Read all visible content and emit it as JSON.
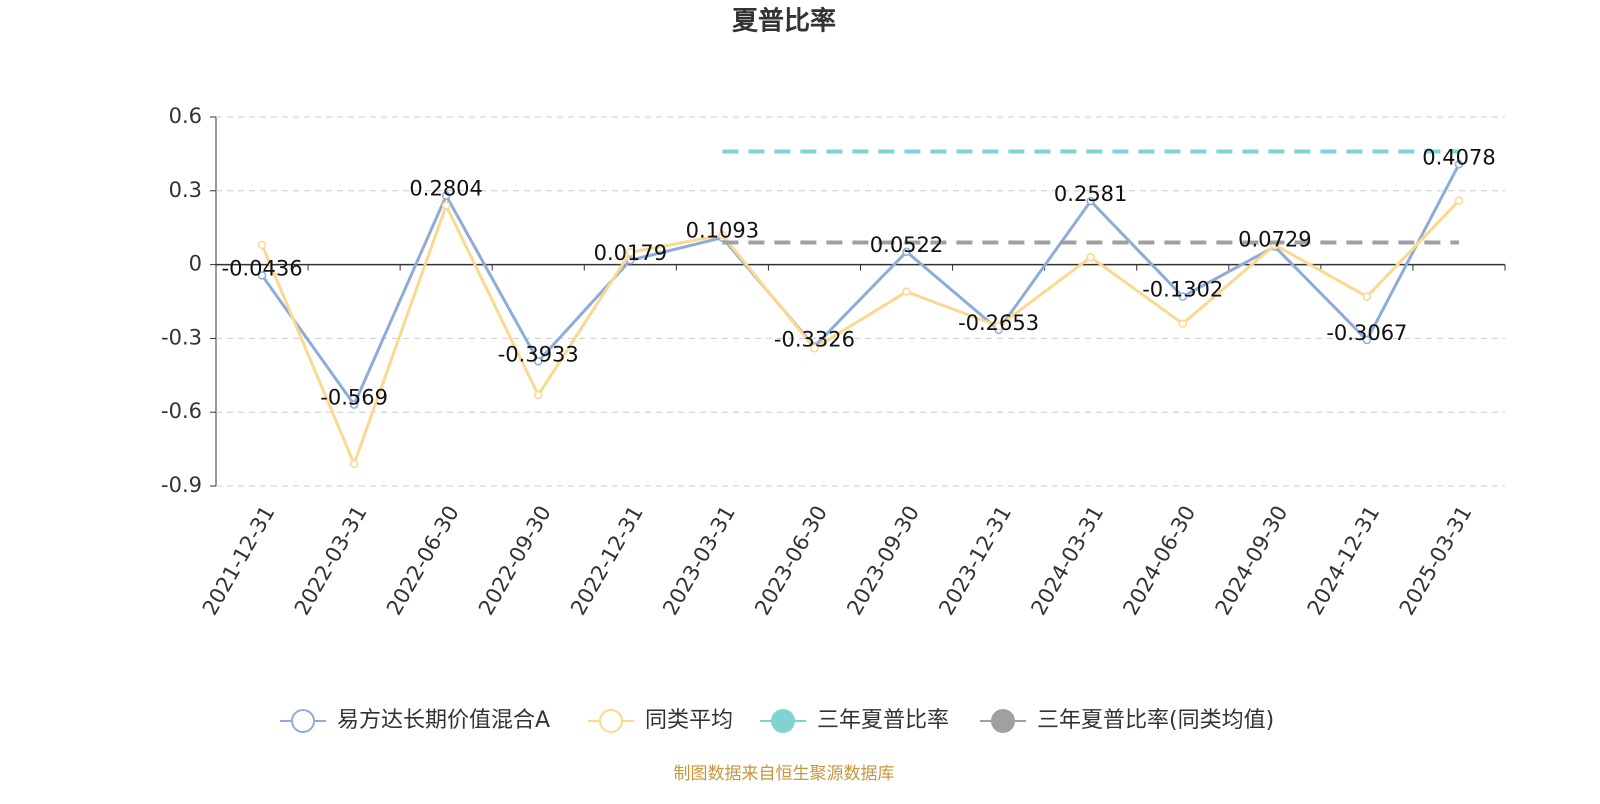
{
  "chart_data": {
    "type": "line",
    "title": "夏普比率",
    "categories": [
      "2021-12-31",
      "2022-03-31",
      "2022-06-30",
      "2022-09-30",
      "2022-12-31",
      "2023-03-31",
      "2023-06-30",
      "2023-09-30",
      "2023-12-31",
      "2024-03-31",
      "2024-06-30",
      "2024-09-30",
      "2024-12-31",
      "2025-03-31"
    ],
    "series": [
      {
        "name": "易方达长期价值混合A",
        "color": "#8eacd9",
        "dashed": false,
        "symbols": true,
        "labels": true,
        "values": [
          -0.0436,
          -0.569,
          0.2804,
          -0.3933,
          0.0179,
          0.1093,
          -0.3326,
          0.0522,
          -0.2653,
          0.2581,
          -0.1302,
          0.0729,
          -0.3067,
          0.4078
        ]
      },
      {
        "name": "同类平均",
        "color": "#fbd98e",
        "dashed": false,
        "symbols": true,
        "labels": false,
        "values": [
          0.08,
          -0.81,
          0.24,
          -0.53,
          0.05,
          0.12,
          -0.34,
          -0.11,
          -0.25,
          0.03,
          -0.24,
          0.08,
          -0.13,
          0.26
        ]
      },
      {
        "name": "三年夏普比率",
        "color": "#7fd3d3",
        "dashed": true,
        "symbols": false,
        "labels": false,
        "values": [
          null,
          null,
          null,
          null,
          null,
          0.46,
          0.46,
          0.46,
          0.46,
          0.46,
          0.46,
          0.46,
          0.46,
          0.46
        ]
      },
      {
        "name": "三年夏普比率(同类均值)",
        "color": "#a0a0a0",
        "dashed": true,
        "symbols": false,
        "labels": false,
        "values": [
          null,
          null,
          null,
          null,
          null,
          0.09,
          0.09,
          0.09,
          0.09,
          0.09,
          0.09,
          0.09,
          0.09,
          0.09
        ]
      }
    ],
    "ylim": [
      -0.9,
      0.6
    ],
    "yticks": [
      -0.9,
      -0.6,
      -0.3,
      0,
      0.3,
      0.6
    ],
    "grid": true,
    "legend": "bottom",
    "source": "制图数据来自恒生聚源数据库"
  }
}
